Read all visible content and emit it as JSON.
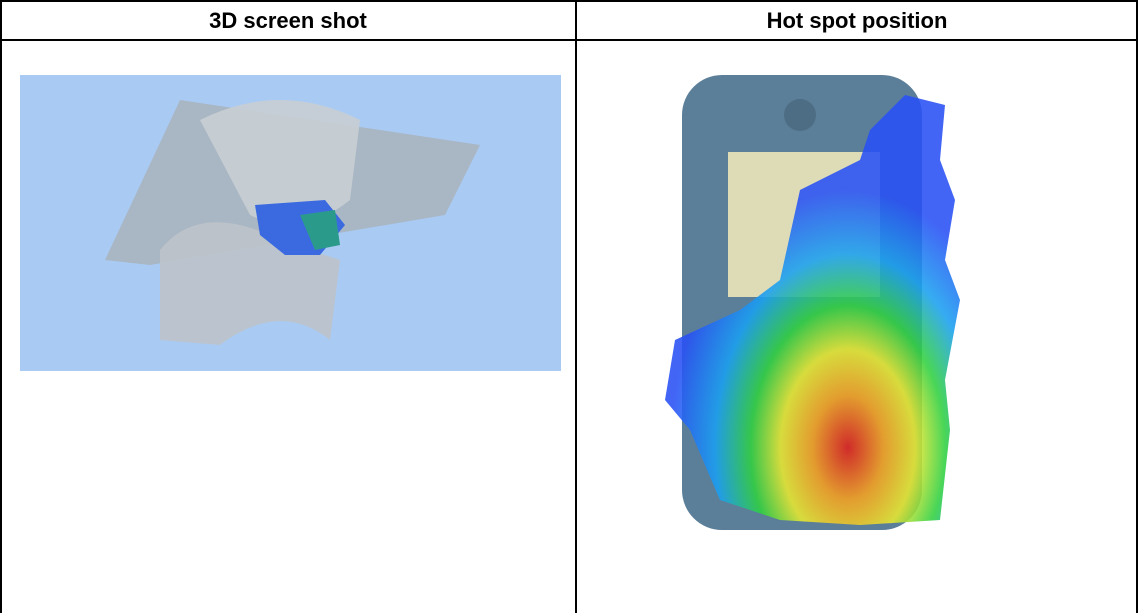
{
  "table": {
    "headers": [
      "3D screen shot",
      "Hot spot position"
    ]
  }
}
